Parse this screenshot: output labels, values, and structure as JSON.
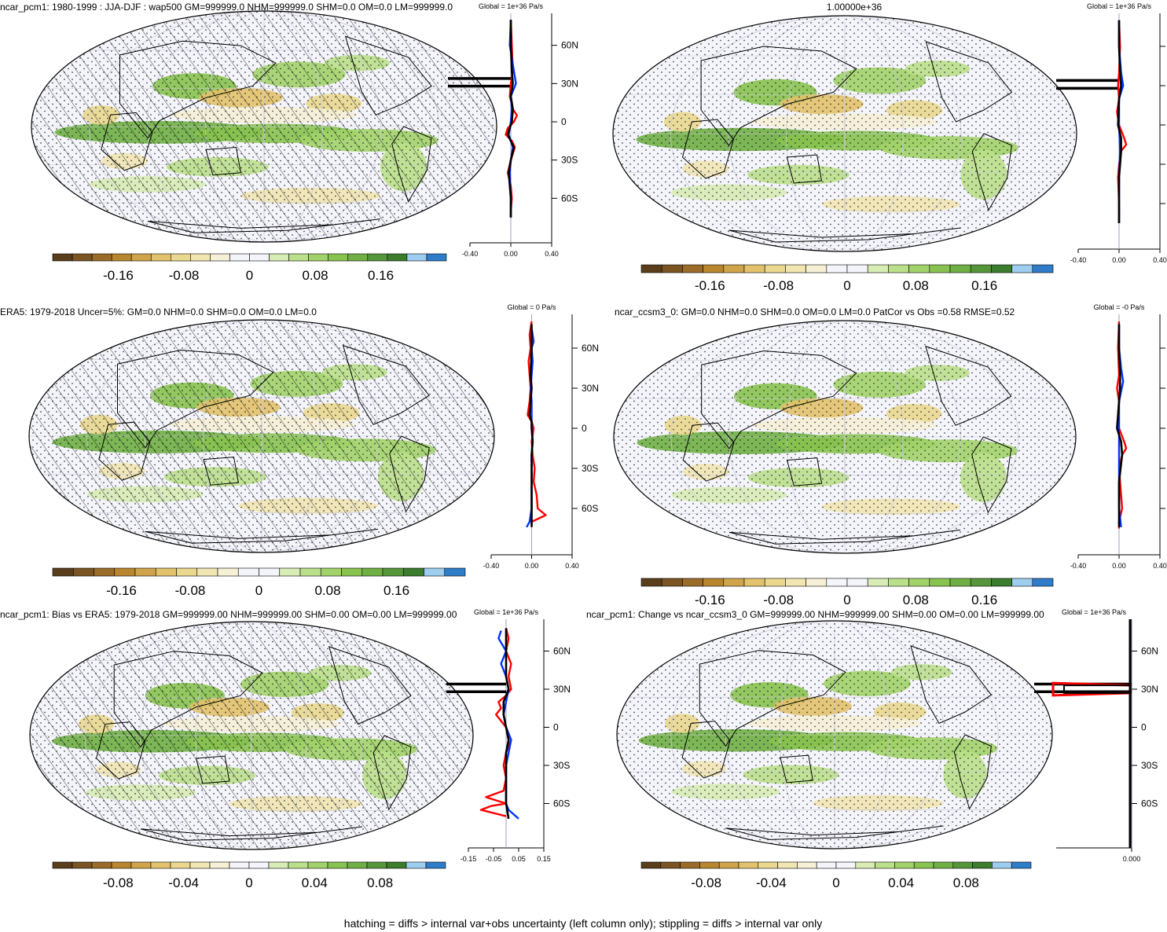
{
  "chart_data": [
    {
      "type": "map",
      "title": "ncar_pcm1: 1980-1999 : JJA-DJF : wap500 GM=999999.0 NHM=999999.0 SHM=0.0 OM=0.0 LM=999999.0",
      "colorbar": {
        "ticks": [
          "-0.16",
          "-0.08",
          "0",
          "0.08",
          "0.16"
        ],
        "min": -0.24,
        "max": 0.24,
        "levels": 20
      },
      "hatched": true,
      "zonal": {
        "header": "Global = 1e+36 Pa/s",
        "lat_ticks": [
          "60N",
          "30N",
          "0",
          "30S",
          "60S"
        ],
        "x_ticks": [
          "-0.40",
          "0.00",
          "0.40"
        ],
        "xlim": [
          -0.4,
          0.4
        ],
        "spike_lats": [
          34,
          28
        ],
        "series": [
          {
            "color": "red",
            "lat": [
              80,
              60,
              40,
              30,
              20,
              10,
              5,
              0,
              -5,
              -10,
              -15,
              -20,
              -30,
              -40,
              -50,
              -60,
              -70,
              -75
            ],
            "values": [
              0.0,
              0.01,
              0.02,
              0.0,
              -0.01,
              0.02,
              0.06,
              0.03,
              -0.03,
              -0.05,
              0.01,
              0.04,
              0.0,
              -0.03,
              0.0,
              0.01,
              0.0,
              0.0
            ]
          },
          {
            "color": "blue",
            "lat": [
              80,
              60,
              40,
              30,
              20,
              10,
              0,
              -10,
              -20,
              -30,
              -40,
              -60,
              -75
            ],
            "values": [
              0.0,
              -0.01,
              0.03,
              0.05,
              0.0,
              0.01,
              0.0,
              -0.02,
              0.02,
              0.0,
              -0.01,
              0.0,
              0.0
            ]
          },
          {
            "color": "black",
            "lat": [
              80,
              60,
              40,
              30,
              20,
              10,
              0,
              -10,
              -20,
              -30,
              -40,
              -60,
              -75
            ],
            "values": [
              0.0,
              0.0,
              0.01,
              0.02,
              0.0,
              0.02,
              0.01,
              -0.03,
              0.03,
              0.0,
              -0.02,
              0.0,
              0.0
            ]
          }
        ]
      }
    },
    {
      "type": "map",
      "title": "1.00000e+36",
      "colorbar": {
        "ticks": [
          "-0.16",
          "-0.08",
          "0",
          "0.08",
          "0.16"
        ],
        "min": -0.24,
        "max": 0.24,
        "levels": 20
      },
      "hatched": false,
      "zonal": {
        "header": "Global = 1e+36 Pa/s",
        "lat_ticks": [],
        "x_ticks": [
          "-0.40",
          "0.00",
          "0.40"
        ],
        "xlim": [
          -0.4,
          0.4
        ],
        "spike_lats": [
          34,
          28
        ],
        "series": [
          {
            "color": "red",
            "lat": [
              80,
              60,
              40,
              30,
              20,
              10,
              0,
              -10,
              -15,
              -20,
              -30,
              -40,
              -60,
              -75
            ],
            "values": [
              0.0,
              0.01,
              0.0,
              -0.01,
              0.0,
              -0.02,
              0.0,
              0.05,
              0.07,
              0.02,
              0.0,
              -0.01,
              0.0,
              0.0
            ]
          },
          {
            "color": "blue",
            "lat": [
              80,
              60,
              40,
              30,
              20,
              0,
              -20,
              -40,
              -75
            ],
            "values": [
              0.0,
              0.0,
              0.02,
              0.04,
              0.0,
              0.0,
              0.01,
              0.0,
              0.0
            ]
          },
          {
            "color": "black",
            "lat": [
              80,
              60,
              40,
              30,
              20,
              0,
              -10,
              -20,
              -40,
              -75
            ],
            "values": [
              0.0,
              0.0,
              0.01,
              0.02,
              0.0,
              -0.01,
              0.02,
              0.02,
              0.0,
              0.0
            ]
          }
        ]
      }
    },
    {
      "type": "map",
      "title": "ERA5: 1979-2018 Uncer=5%: GM=0.0 NHM=0.0 SHM=0.0 OM=0.0 LM=0.0",
      "colorbar": {
        "ticks": [
          "-0.16",
          "-0.08",
          "0",
          "0.08",
          "0.16"
        ],
        "min": -0.24,
        "max": 0.24,
        "levels": 20
      },
      "hatched": true,
      "zonal": {
        "header": "Global = 0 Pa/s",
        "lat_ticks": [
          "60N",
          "30N",
          "0",
          "30S",
          "60S"
        ],
        "x_ticks": [
          "-0.40",
          "0.00",
          "0.40"
        ],
        "xlim": [
          -0.4,
          0.4
        ],
        "spike_lats": [],
        "series": [
          {
            "color": "red",
            "lat": [
              80,
              70,
              60,
              50,
              40,
              30,
              20,
              10,
              5,
              0,
              -10,
              -20,
              -30,
              -40,
              -50,
              -60,
              -65,
              -70
            ],
            "values": [
              0.0,
              -0.02,
              -0.01,
              -0.03,
              -0.02,
              -0.01,
              -0.02,
              -0.04,
              0.0,
              0.02,
              0.0,
              0.01,
              0.03,
              0.02,
              0.05,
              0.06,
              0.14,
              0.0
            ]
          },
          {
            "color": "blue",
            "lat": [
              75,
              65,
              60,
              50,
              40,
              30,
              20,
              10,
              0,
              -10,
              -20,
              -30,
              -40,
              -60,
              -70,
              -74
            ],
            "values": [
              0.0,
              0.02,
              0.0,
              0.01,
              0.0,
              -0.01,
              0.0,
              0.0,
              0.0,
              0.01,
              0.0,
              0.0,
              0.0,
              0.0,
              -0.02,
              -0.05
            ]
          },
          {
            "color": "black",
            "lat": [
              78,
              60,
              40,
              30,
              20,
              10,
              5,
              0,
              -10,
              -20,
              -30,
              -40,
              -60,
              -74
            ],
            "values": [
              0.0,
              0.0,
              -0.01,
              0.0,
              -0.01,
              -0.02,
              0.0,
              0.0,
              0.01,
              0.0,
              0.0,
              0.0,
              0.0,
              0.0
            ]
          }
        ]
      }
    },
    {
      "type": "map",
      "title": "ncar_ccsm3_0: GM=0.0 NHM=0.0 SHM=0.0 OM=0.0 LM=0.0 PatCor vs Obs =0.58 RMSE=0.52",
      "colorbar": {
        "ticks": [
          "-0.16",
          "-0.08",
          "0",
          "0.08",
          "0.16"
        ],
        "min": -0.24,
        "max": 0.24,
        "levels": 20
      },
      "hatched": false,
      "zonal": {
        "header": "Global = -0 Pa/s",
        "lat_ticks": [],
        "x_ticks": [
          "-0.40",
          "0.00",
          "0.40"
        ],
        "xlim": [
          -0.4,
          0.4
        ],
        "spike_lats": [],
        "series": [
          {
            "color": "red",
            "lat": [
              80,
              60,
              40,
              30,
              20,
              10,
              0,
              -10,
              -15,
              -20,
              -30,
              -40,
              -50,
              -60,
              -70,
              -75
            ],
            "values": [
              0.0,
              -0.01,
              0.0,
              -0.02,
              0.0,
              -0.01,
              0.0,
              0.05,
              0.07,
              0.03,
              0.0,
              0.01,
              0.02,
              0.03,
              0.0,
              0.0
            ]
          },
          {
            "color": "blue",
            "lat": [
              78,
              60,
              45,
              35,
              20,
              0,
              -20,
              -40,
              -60,
              -74
            ],
            "values": [
              0.0,
              0.0,
              0.02,
              0.04,
              0.0,
              0.0,
              0.0,
              0.0,
              0.0,
              0.02
            ]
          },
          {
            "color": "black",
            "lat": [
              78,
              60,
              40,
              30,
              20,
              10,
              0,
              -10,
              -20,
              -40,
              -60,
              -74
            ],
            "values": [
              0.0,
              0.0,
              0.01,
              0.01,
              0.0,
              -0.01,
              -0.02,
              0.02,
              0.03,
              0.0,
              0.0,
              0.0
            ]
          }
        ]
      }
    },
    {
      "type": "map",
      "title": "ncar_pcm1: Bias vs ERA5: 1979-2018 GM=999999.00 NHM=999999.00 SHM=0.00 OM=0.00 LM=999999.00",
      "colorbar": {
        "ticks": [
          "-0.08",
          "-0.04",
          "0",
          "0.04",
          "0.08"
        ],
        "min": -0.12,
        "max": 0.12,
        "levels": 20
      },
      "hatched": true,
      "zonal": {
        "header": "Global = 1e+36 Pa/s",
        "lat_ticks": [
          "60N",
          "30N",
          "0",
          "30S",
          "60S"
        ],
        "x_ticks": [
          "-0.15",
          "-0.05",
          "0.05",
          "0.15"
        ],
        "xlim": [
          -0.15,
          0.15
        ],
        "spike_lats": [
          34,
          28
        ],
        "series": [
          {
            "color": "red",
            "lat": [
              78,
              70,
              60,
              50,
              40,
              30,
              25,
              20,
              15,
              10,
              5,
              0,
              -5,
              -10,
              -20,
              -30,
              -40,
              -50,
              -55,
              -60,
              -62,
              -65,
              -70
            ],
            "values": [
              0.0,
              0.01,
              0.0,
              0.02,
              0.01,
              0.02,
              0.0,
              -0.03,
              -0.02,
              -0.04,
              -0.02,
              0.0,
              0.01,
              0.02,
              0.0,
              -0.01,
              0.0,
              -0.01,
              -0.08,
              0.0,
              -0.06,
              -0.1,
              0.0
            ]
          },
          {
            "color": "blue",
            "lat": [
              76,
              70,
              60,
              50,
              40,
              30,
              20,
              10,
              0,
              -10,
              -20,
              -30,
              -40,
              -60,
              -65,
              -72
            ],
            "values": [
              -0.02,
              -0.03,
              0.0,
              -0.02,
              0.0,
              0.01,
              0.0,
              -0.01,
              0.0,
              0.02,
              0.01,
              0.0,
              0.0,
              0.0,
              0.01,
              0.05
            ]
          },
          {
            "color": "black",
            "lat": [
              78,
              60,
              40,
              30,
              20,
              10,
              0,
              -10,
              -20,
              -40,
              -60,
              -72
            ],
            "values": [
              0.0,
              0.0,
              0.0,
              0.01,
              -0.01,
              -0.01,
              0.0,
              0.01,
              0.0,
              0.0,
              0.0,
              0.01
            ]
          }
        ]
      }
    },
    {
      "type": "map",
      "title": "ncar_pcm1: Change vs ncar_ccsm3_0 GM=999999.00 NHM=999999.00 SHM=0.00 OM=0.00 LM=999999.00",
      "colorbar": {
        "ticks": [
          "-0.08",
          "-0.04",
          "0",
          "0.04",
          "0.08"
        ],
        "min": -0.12,
        "max": 0.12,
        "levels": 20
      },
      "hatched": false,
      "zonal": {
        "header": "Global = 1e+36 Pa/s",
        "lat_ticks": [
          "60N",
          "30N",
          "0",
          "30S",
          "60S"
        ],
        "x_ticks": [
          "0.000"
        ],
        "xlim": [
          -0.15,
          0.0
        ],
        "spike_lats": [
          34,
          28
        ],
        "series": []
      }
    }
  ],
  "footer": "hatching = diffs > internal var+obs uncertainty (left column only); stippling = diffs > internal var only",
  "colors": {
    "red": "#ff0000",
    "blue": "#0033ff",
    "black": "#000000",
    "palette": [
      "#5a3e1b",
      "#7a5422",
      "#9b6b2a",
      "#b8862e",
      "#d0a44a",
      "#e2c26c",
      "#ead88f",
      "#f1e6b2",
      "#f6f0d6",
      "#f4f4fb",
      "#f4f4fb",
      "#d8ecb5",
      "#bbe08b",
      "#a2d36a",
      "#88c350",
      "#6faf44",
      "#55963b",
      "#3b7c2d",
      "#9dcdef",
      "#2f7cc8"
    ]
  }
}
